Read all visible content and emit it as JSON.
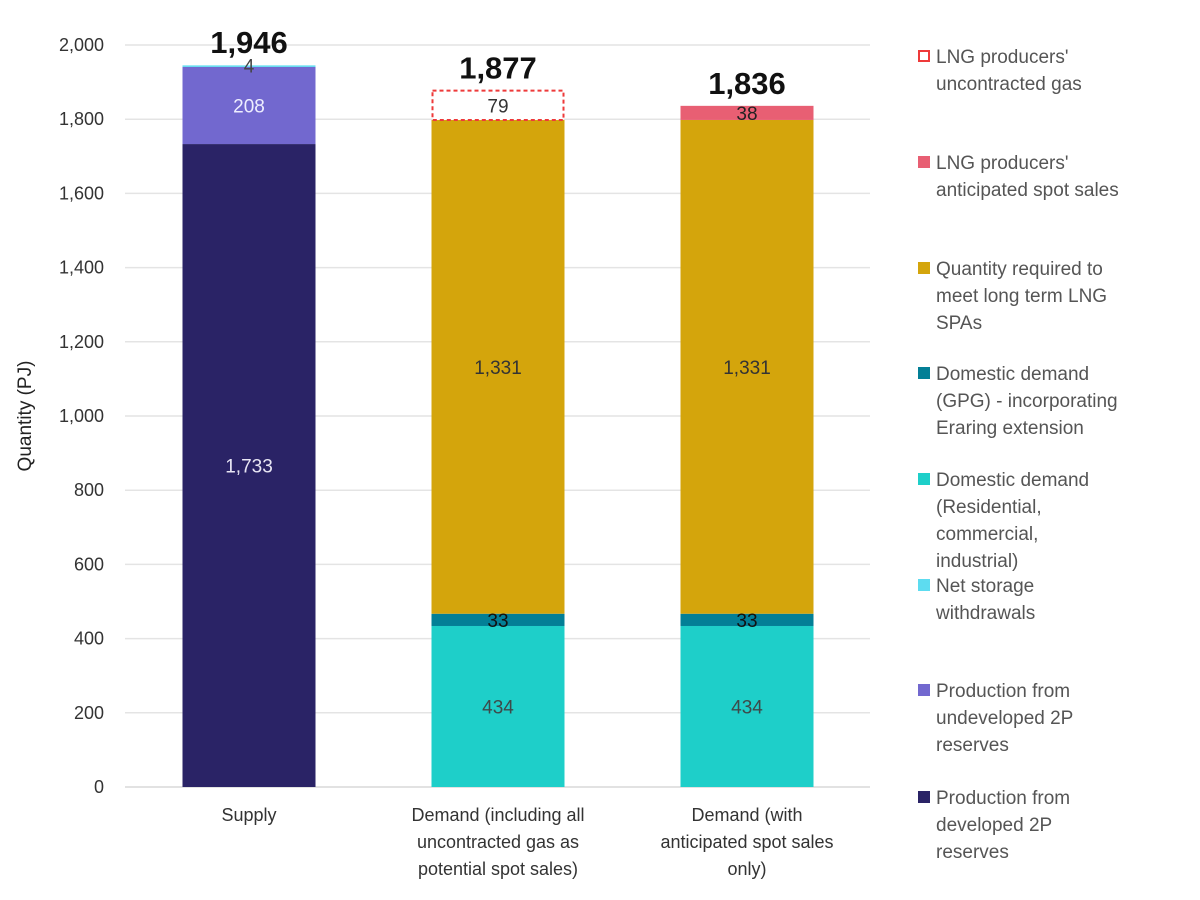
{
  "chart_data": {
    "type": "bar",
    "stacked": true,
    "title": "",
    "xlabel": "",
    "ylabel": "Quantity (PJ)",
    "ylim": [
      0,
      2000
    ],
    "yticks": [
      0,
      200,
      400,
      600,
      800,
      1000,
      1200,
      1400,
      1600,
      1800,
      2000
    ],
    "ytick_labels": [
      "0",
      "200",
      "400",
      "600",
      "800",
      "1,000",
      "1,200",
      "1,400",
      "1,600",
      "1,800",
      "2,000"
    ],
    "grid": true,
    "legend_position": "right",
    "categories": [
      "Supply",
      "Demand (including all uncontracted gas as potential spot sales)",
      "Demand (with anticipated spot sales only)"
    ],
    "category_label_lines": [
      [
        "Supply"
      ],
      [
        "Demand (including all",
        "uncontracted gas as",
        "potential spot sales)"
      ],
      [
        "Demand (with",
        "anticipated spot sales",
        "only)"
      ]
    ],
    "totals": [
      1946,
      1877,
      1836
    ],
    "total_labels": [
      "1,946",
      "1,877",
      "1,836"
    ],
    "series": [
      {
        "name": "Production from developed 2P reserves",
        "color": "#2a2366",
        "label_color": "#e8e6f4",
        "values": [
          1733,
          0,
          0
        ],
        "labels": [
          "1,733",
          "",
          ""
        ]
      },
      {
        "name": "Production from undeveloped 2P reserves",
        "color": "#7268cf",
        "label_color": "#eeeeff",
        "values": [
          208,
          0,
          0
        ],
        "labels": [
          "208",
          "",
          ""
        ]
      },
      {
        "name": "Net storage withdrawals",
        "color": "#5ddcf0",
        "label_color": "#444444",
        "values": [
          4,
          0,
          0
        ],
        "labels": [
          "4",
          "",
          ""
        ]
      },
      {
        "name": "Domestic demand (Residential, commercial, industrial)",
        "color": "#1ecfc9",
        "label_color": "#3d4a4a",
        "values": [
          0,
          434,
          434
        ],
        "labels": [
          "",
          "434",
          "434"
        ]
      },
      {
        "name": "Domestic demand (GPG) - incorporating Eraring extension",
        "color": "#037f96",
        "label_color": "#111111",
        "values": [
          0,
          33,
          33
        ],
        "labels": [
          "",
          "33",
          "33"
        ]
      },
      {
        "name": "Quantity required to meet long term LNG SPAs",
        "color": "#d4a50c",
        "label_color": "#333333",
        "values": [
          0,
          1331,
          1331
        ],
        "labels": [
          "",
          "1,331",
          "1,331"
        ]
      },
      {
        "name": "LNG producers' anticipated spot sales",
        "color": "#e85f73",
        "label_color": "#222222",
        "values": [
          0,
          0,
          38
        ],
        "labels": [
          "",
          "",
          "38"
        ]
      },
      {
        "name": "LNG producers' uncontracted gas",
        "color": "#ffffff",
        "border_color": "#ee3a3a",
        "dashed": true,
        "label_color": "#333333",
        "values": [
          0,
          79,
          0
        ],
        "labels": [
          "",
          "79",
          ""
        ]
      }
    ]
  },
  "legend": [
    {
      "lines": [
        "LNG producers'",
        "uncontracted gas"
      ],
      "color": "#ffffff",
      "border_color": "#ee3a3a",
      "dashed": true
    },
    {
      "lines": [
        "LNG producers'",
        "anticipated spot sales"
      ],
      "color": "#e85f73"
    },
    {
      "lines": [
        "Quantity required to",
        "meet long term LNG",
        "SPAs"
      ],
      "color": "#d4a50c"
    },
    {
      "lines": [
        "Domestic demand",
        "(GPG) - incorporating",
        "Eraring extension"
      ],
      "color": "#037f96"
    },
    {
      "lines": [
        "Domestic demand",
        "(Residential,",
        "commercial,",
        "industrial)"
      ],
      "color": "#1ecfc9"
    },
    {
      "lines": [
        "Net storage",
        "withdrawals"
      ],
      "color": "#5ddcf0"
    },
    {
      "lines": [
        "Production from",
        "undeveloped 2P",
        "reserves"
      ],
      "color": "#7268cf"
    },
    {
      "lines": [
        "Production from",
        "developed 2P",
        "reserves"
      ],
      "color": "#2a2366"
    }
  ]
}
